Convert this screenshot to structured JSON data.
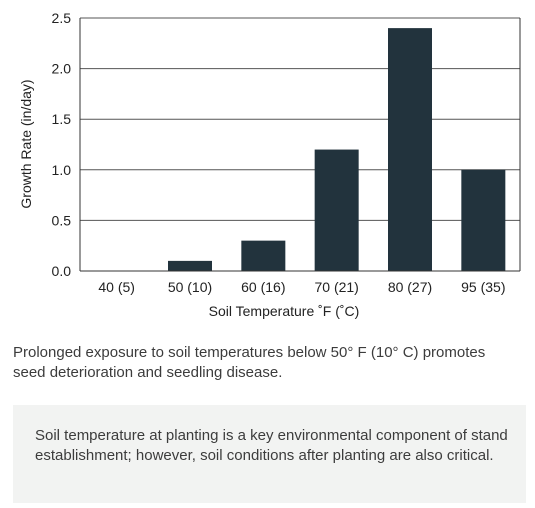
{
  "chart_data": {
    "type": "bar",
    "categories": [
      "40 (5)",
      "50 (10)",
      "60 (16)",
      "70 (21)",
      "80 (27)",
      "95 (35)"
    ],
    "values": [
      0.0,
      0.1,
      0.3,
      1.2,
      2.4,
      1.0
    ],
    "xlabel": "Soil Temperature ˚F (˚C)",
    "ylabel": "Growth Rate (in/day)",
    "ylim": [
      0,
      2.5
    ],
    "yticks": [
      "0.0",
      "0.5",
      "1.0",
      "1.5",
      "2.0",
      "2.5"
    ],
    "grid": true,
    "bar_color": "#22333d"
  },
  "note": "Prolonged exposure to soil temperatures below 50° F (10° C) promotes seed deterioration and seedling disease.",
  "callout": "Soil temperature at planting is a key environmental component of stand establishment; however, soil conditions after planting are also critical."
}
